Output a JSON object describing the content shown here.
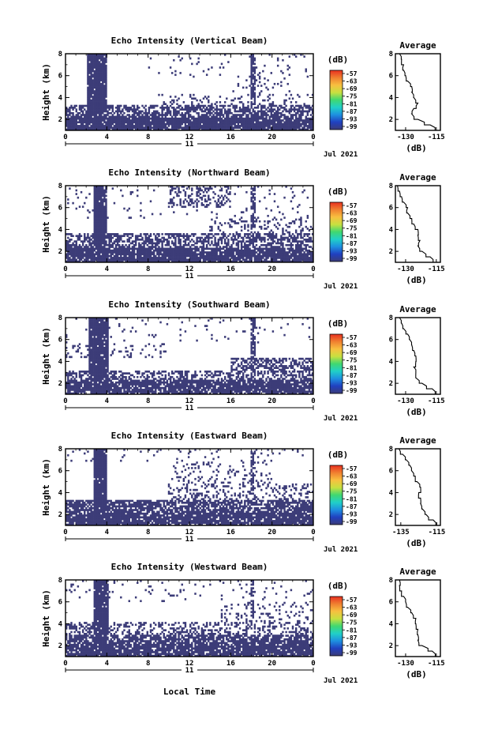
{
  "figure": {
    "xlabel": "Local Time",
    "date_label": "11",
    "month_label": "Jul 2021"
  },
  "chart_data": [
    {
      "type": "heatmap",
      "title": "Echo Intensity (Vertical Beam)",
      "ylabel": "Height (km)",
      "x_ticks": [
        "0",
        "4",
        "8",
        "12",
        "16",
        "20",
        "0"
      ],
      "y_ticks": [
        "2",
        "4",
        "6",
        "8"
      ],
      "xlim": [
        0,
        24
      ],
      "ylim": [
        1,
        8
      ],
      "colorbar": {
        "label": "(dB)",
        "ticks": [
          "-57",
          "-63",
          "-69",
          "-75",
          "-81",
          "-87",
          "-93",
          "-99"
        ],
        "range": [
          -99,
          -57
        ],
        "colors": [
          "#3c3c78",
          "#2040c0",
          "#1e90e0",
          "#20d0c8",
          "#40d870",
          "#c8e040",
          "#f8c040",
          "#f08030",
          "#e83020"
        ]
      },
      "fill_color": "#3c3c78",
      "layers": [
        {
          "h0": 1.0,
          "h1": 2.2,
          "x0": 0,
          "x1": 24,
          "density": 0.93
        },
        {
          "h0": 2.2,
          "h1": 3.3,
          "x0": 0,
          "x1": 24,
          "density": 0.66
        },
        {
          "h0": 3.3,
          "h1": 4.3,
          "x0": 9,
          "x1": 24,
          "density": 0.18
        },
        {
          "h0": 4.3,
          "h1": 5.8,
          "x0": 16,
          "x1": 22,
          "density": 0.12
        },
        {
          "h0": 5.8,
          "h1": 8.0,
          "x0": 8,
          "x1": 24,
          "density": 0.04
        }
      ],
      "columns": [
        {
          "t0": 2.1,
          "t1": 4.0,
          "h0": 1.0,
          "h1": 8.0,
          "density": 0.96
        },
        {
          "t0": 18.0,
          "t1": 18.4,
          "h0": 3.0,
          "h1": 8.0,
          "density": 0.78
        }
      ],
      "profile": {
        "title": "Average",
        "xlabel": "(dB)",
        "x_ticks": [
          "-130",
          "-115"
        ],
        "xlim": [
          -135,
          -113
        ],
        "y_ticks": [
          "2",
          "4",
          "6",
          "8"
        ],
        "ylim": [
          1,
          8
        ],
        "height": [
          1.0,
          1.5,
          2.0,
          2.5,
          3.0,
          3.5,
          4.0,
          4.5,
          5.0,
          5.5,
          6.0,
          6.5,
          7.0,
          7.5,
          8.0
        ],
        "value": [
          -113,
          -118,
          -124,
          -127,
          -126,
          -124,
          -126,
          -127,
          -127,
          -129,
          -130,
          -131,
          -131,
          -132,
          -133
        ]
      }
    },
    {
      "type": "heatmap",
      "title": "Echo Intensity (Northward Beam)",
      "ylabel": "Height (km)",
      "x_ticks": [
        "0",
        "4",
        "8",
        "12",
        "16",
        "20",
        "0"
      ],
      "y_ticks": [
        "2",
        "4",
        "6",
        "8"
      ],
      "xlim": [
        0,
        24
      ],
      "ylim": [
        1,
        8
      ],
      "colorbar": {
        "label": "(dB)",
        "ticks": [
          "-57",
          "-63",
          "-69",
          "-75",
          "-81",
          "-87",
          "-93",
          "-99"
        ],
        "range": [
          -99,
          -57
        ],
        "colors": [
          "#3c3c78",
          "#2040c0",
          "#1e90e0",
          "#20d0c8",
          "#40d870",
          "#c8e040",
          "#f8c040",
          "#f08030",
          "#e83020"
        ]
      },
      "fill_color": "#3c3c78",
      "layers": [
        {
          "h0": 1.0,
          "h1": 2.3,
          "x0": 0,
          "x1": 24,
          "density": 0.9
        },
        {
          "h0": 2.3,
          "h1": 3.6,
          "x0": 0,
          "x1": 24,
          "density": 0.6
        },
        {
          "h0": 3.6,
          "h1": 5.0,
          "x0": 14,
          "x1": 24,
          "density": 0.2
        },
        {
          "h0": 6.0,
          "h1": 8.0,
          "x0": 10,
          "x1": 16,
          "density": 0.35
        },
        {
          "h0": 5.0,
          "h1": 8.0,
          "x0": 0,
          "x1": 24,
          "density": 0.04
        }
      ],
      "columns": [
        {
          "t0": 2.8,
          "t1": 4.0,
          "h0": 1.0,
          "h1": 8.0,
          "density": 0.95
        },
        {
          "t0": 18.0,
          "t1": 18.4,
          "h0": 4.0,
          "h1": 8.0,
          "density": 0.7
        }
      ],
      "profile": {
        "title": "Average",
        "xlabel": "(dB)",
        "x_ticks": [
          "-130",
          "-115"
        ],
        "xlim": [
          -135,
          -113
        ],
        "y_ticks": [
          "2",
          "4",
          "6",
          "8"
        ],
        "ylim": [
          1,
          8
        ],
        "height": [
          1.0,
          1.5,
          2.0,
          2.5,
          3.0,
          3.5,
          4.0,
          4.5,
          5.0,
          5.5,
          6.0,
          6.5,
          7.0,
          7.5,
          8.0
        ],
        "value": [
          -115,
          -118,
          -122,
          -124,
          -123,
          -124,
          -124,
          -126,
          -127,
          -129,
          -129,
          -131,
          -132,
          -133,
          -134
        ]
      }
    },
    {
      "type": "heatmap",
      "title": "Echo Intensity (Southward Beam)",
      "ylabel": "Height (km)",
      "x_ticks": [
        "0",
        "4",
        "8",
        "12",
        "16",
        "20",
        "0"
      ],
      "y_ticks": [
        "2",
        "4",
        "6",
        "8"
      ],
      "xlim": [
        0,
        24
      ],
      "ylim": [
        1,
        8
      ],
      "colorbar": {
        "label": "(dB)",
        "ticks": [
          "-57",
          "-63",
          "-69",
          "-75",
          "-81",
          "-87",
          "-93",
          "-99"
        ],
        "range": [
          -99,
          -57
        ],
        "colors": [
          "#3c3c78",
          "#2040c0",
          "#1e90e0",
          "#20d0c8",
          "#40d870",
          "#c8e040",
          "#f8c040",
          "#f08030",
          "#e83020"
        ]
      },
      "fill_color": "#3c3c78",
      "layers": [
        {
          "h0": 1.0,
          "h1": 2.3,
          "x0": 0,
          "x1": 24,
          "density": 0.85
        },
        {
          "h0": 2.3,
          "h1": 3.2,
          "x0": 0,
          "x1": 24,
          "density": 0.5
        },
        {
          "h0": 3.2,
          "h1": 4.4,
          "x0": 16,
          "x1": 24,
          "density": 0.55
        },
        {
          "h0": 4.4,
          "h1": 5.6,
          "x0": 0,
          "x1": 10,
          "density": 0.12
        },
        {
          "h0": 5.6,
          "h1": 8.0,
          "x0": 0,
          "x1": 24,
          "density": 0.04
        }
      ],
      "columns": [
        {
          "t0": 2.2,
          "t1": 4.2,
          "h0": 1.0,
          "h1": 8.0,
          "density": 0.95
        },
        {
          "t0": 18.0,
          "t1": 18.4,
          "h0": 3.0,
          "h1": 8.0,
          "density": 0.75
        }
      ],
      "profile": {
        "title": "Average",
        "xlabel": "(dB)",
        "x_ticks": [
          "-130",
          "-115"
        ],
        "xlim": [
          -135,
          -113
        ],
        "y_ticks": [
          "2",
          "4",
          "6",
          "8"
        ],
        "ylim": [
          1,
          8
        ],
        "height": [
          1.0,
          1.5,
          2.0,
          2.5,
          3.0,
          3.5,
          4.0,
          4.5,
          5.0,
          5.5,
          6.0,
          6.5,
          7.0,
          7.5,
          8.0
        ],
        "value": [
          -114,
          -117,
          -122,
          -125,
          -125,
          -126,
          -125,
          -125,
          -126,
          -127,
          -128,
          -129,
          -131,
          -132,
          -133
        ]
      }
    },
    {
      "type": "heatmap",
      "title": "Echo Intensity (Eastward Beam)",
      "ylabel": "Height (km)",
      "x_ticks": [
        "0",
        "4",
        "8",
        "12",
        "16",
        "20",
        "0"
      ],
      "y_ticks": [
        "2",
        "4",
        "6",
        "8"
      ],
      "xlim": [
        0,
        24
      ],
      "ylim": [
        1,
        8
      ],
      "colorbar": {
        "label": "(dB)",
        "ticks": [
          "-57",
          "-63",
          "-69",
          "-75",
          "-81",
          "-87",
          "-93",
          "-99"
        ],
        "range": [
          -99,
          -57
        ],
        "colors": [
          "#3c3c78",
          "#2040c0",
          "#1e90e0",
          "#20d0c8",
          "#40d870",
          "#c8e040",
          "#f8c040",
          "#f08030",
          "#e83020"
        ]
      },
      "fill_color": "#3c3c78",
      "layers": [
        {
          "h0": 1.0,
          "h1": 2.2,
          "x0": 0,
          "x1": 24,
          "density": 0.88
        },
        {
          "h0": 2.2,
          "h1": 3.3,
          "x0": 0,
          "x1": 24,
          "density": 0.75
        },
        {
          "h0": 3.3,
          "h1": 4.8,
          "x0": 10,
          "x1": 24,
          "density": 0.22
        },
        {
          "h0": 4.8,
          "h1": 6.8,
          "x0": 10,
          "x1": 20,
          "density": 0.14
        },
        {
          "h0": 6.8,
          "h1": 8.0,
          "x0": 0,
          "x1": 24,
          "density": 0.05
        }
      ],
      "columns": [
        {
          "t0": 2.7,
          "t1": 4.0,
          "h0": 1.0,
          "h1": 8.0,
          "density": 0.96
        },
        {
          "t0": 18.0,
          "t1": 18.3,
          "h0": 4.0,
          "h1": 8.0,
          "density": 0.6
        }
      ],
      "profile": {
        "title": "Average",
        "xlabel": "(dB)",
        "x_ticks": [
          "-135",
          "-115"
        ],
        "xlim": [
          -138,
          -113
        ],
        "y_ticks": [
          "2",
          "4",
          "6",
          "8"
        ],
        "ylim": [
          1,
          8
        ],
        "height": [
          1.0,
          1.5,
          2.0,
          2.5,
          3.0,
          3.5,
          4.0,
          4.5,
          5.0,
          5.5,
          6.0,
          6.5,
          7.0,
          7.5,
          8.0
        ],
        "value": [
          -114,
          -117,
          -121,
          -123,
          -124,
          -124,
          -125,
          -124,
          -126,
          -127,
          -129,
          -130,
          -132,
          -134,
          -136
        ]
      }
    },
    {
      "type": "heatmap",
      "title": "Echo Intensity (Westward Beam)",
      "ylabel": "Height (km)",
      "x_ticks": [
        "0",
        "4",
        "8",
        "12",
        "16",
        "20",
        "0"
      ],
      "y_ticks": [
        "2",
        "4",
        "6",
        "8"
      ],
      "xlim": [
        0,
        24
      ],
      "ylim": [
        1,
        8
      ],
      "colorbar": {
        "label": "(dB)",
        "ticks": [
          "-57",
          "-63",
          "-69",
          "-75",
          "-81",
          "-87",
          "-93",
          "-99"
        ],
        "range": [
          -99,
          -57
        ],
        "colors": [
          "#3c3c78",
          "#2040c0",
          "#1e90e0",
          "#20d0c8",
          "#40d870",
          "#c8e040",
          "#f8c040",
          "#f08030",
          "#e83020"
        ]
      },
      "fill_color": "#3c3c78",
      "layers": [
        {
          "h0": 1.0,
          "h1": 2.0,
          "x0": 0,
          "x1": 24,
          "density": 0.9
        },
        {
          "h0": 2.0,
          "h1": 3.0,
          "x0": 0,
          "x1": 24,
          "density": 0.78
        },
        {
          "h0": 3.0,
          "h1": 4.2,
          "x0": 0,
          "x1": 24,
          "density": 0.35
        },
        {
          "h0": 4.2,
          "h1": 6.0,
          "x0": 15,
          "x1": 24,
          "density": 0.14
        },
        {
          "h0": 6.0,
          "h1": 8.0,
          "x0": 0,
          "x1": 24,
          "density": 0.04
        }
      ],
      "columns": [
        {
          "t0": 2.8,
          "t1": 4.1,
          "h0": 1.0,
          "h1": 8.0,
          "density": 0.95
        },
        {
          "t0": 18.0,
          "t1": 18.3,
          "h0": 4.0,
          "h1": 8.0,
          "density": 0.6
        }
      ],
      "profile": {
        "title": "Average",
        "xlabel": "(dB)",
        "x_ticks": [
          "-130",
          "-115"
        ],
        "xlim": [
          -135,
          -113
        ],
        "y_ticks": [
          "2",
          "4",
          "6",
          "8"
        ],
        "ylim": [
          1,
          8
        ],
        "height": [
          1.0,
          1.5,
          2.0,
          2.5,
          3.0,
          3.5,
          4.0,
          4.5,
          5.0,
          5.5,
          6.0,
          6.5,
          7.0,
          7.5,
          8.0
        ],
        "value": [
          -114,
          -117,
          -122,
          -124,
          -124,
          -124,
          -125,
          -125,
          -127,
          -129,
          -130,
          -131,
          -132,
          -133,
          -133
        ]
      }
    }
  ]
}
